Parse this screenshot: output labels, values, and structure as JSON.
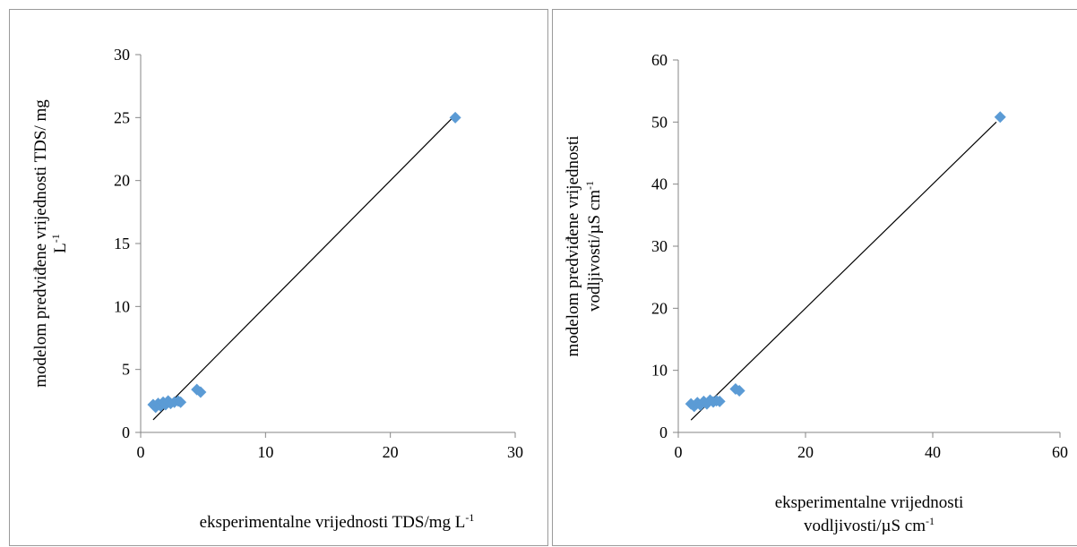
{
  "colors": {
    "marker": "#5b9bd5",
    "axis": "#868686",
    "trendline": "#000000",
    "border": "#9a9a9a"
  },
  "chart_data": [
    {
      "type": "scatter",
      "title": "",
      "xlabel": "eksperimentalne vrijednosti TDS/mg L-1",
      "xlabel_lines": [
        {
          "text": "eksperimentalne vrijednosti TDS/mg L",
          "sup": "-1"
        }
      ],
      "ylabel": "modelom predviđene vrijednosti TDS/ mg L-1",
      "ylabel_lines": [
        {
          "text": "modelom predviđene vrijednosti TDS/ mg",
          "sup": ""
        },
        {
          "text": "L",
          "sup": "-1"
        }
      ],
      "xlim": [
        0,
        30
      ],
      "ylim": [
        0,
        30
      ],
      "xticks": [
        0,
        10,
        20,
        30
      ],
      "yticks": [
        0,
        5,
        10,
        15,
        20,
        25,
        30
      ],
      "grid": false,
      "legend": "none",
      "series": [
        {
          "marker": "diamond",
          "points": [
            [
              1.0,
              2.2
            ],
            [
              1.2,
              2.0
            ],
            [
              1.4,
              2.3
            ],
            [
              1.6,
              2.1
            ],
            [
              1.8,
              2.4
            ],
            [
              2.0,
              2.2
            ],
            [
              2.2,
              2.5
            ],
            [
              2.4,
              2.3
            ],
            [
              2.7,
              2.4
            ],
            [
              3.0,
              2.5
            ],
            [
              3.2,
              2.4
            ],
            [
              4.5,
              3.4
            ],
            [
              4.8,
              3.2
            ],
            [
              25.2,
              25.0
            ]
          ]
        }
      ],
      "trendline": {
        "x": [
          1.0,
          25.0
        ],
        "y": [
          1.0,
          25.0
        ]
      }
    },
    {
      "type": "scatter",
      "title": "",
      "xlabel": "eksperimentalne vrijednosti vodljivosti/µS cm-1",
      "xlabel_lines": [
        {
          "text": "eksperimentalne vrijednosti",
          "sup": ""
        },
        {
          "text": "vodljivosti/µS cm",
          "sup": "-1"
        }
      ],
      "ylabel": "modelom predviđene vrijednosti vodljivosti/µS cm-1",
      "ylabel_lines": [
        {
          "text": "modelom predviđene vrijednosti",
          "sup": ""
        },
        {
          "text": "vodljivosti/µS cm",
          "sup": "-1"
        }
      ],
      "xlim": [
        0,
        60
      ],
      "ylim": [
        0,
        60
      ],
      "xticks": [
        0,
        20,
        40,
        60
      ],
      "yticks": [
        0,
        10,
        20,
        30,
        40,
        50,
        60
      ],
      "grid": false,
      "legend": "none",
      "series": [
        {
          "marker": "diamond",
          "points": [
            [
              2.0,
              4.6
            ],
            [
              2.5,
              4.2
            ],
            [
              3.0,
              4.8
            ],
            [
              3.5,
              4.4
            ],
            [
              4.0,
              5.0
            ],
            [
              4.5,
              4.6
            ],
            [
              5.0,
              5.2
            ],
            [
              5.5,
              4.9
            ],
            [
              6.0,
              5.1
            ],
            [
              6.5,
              5.0
            ],
            [
              9.0,
              7.0
            ],
            [
              9.6,
              6.7
            ],
            [
              50.6,
              50.8
            ]
          ]
        }
      ],
      "trendline": {
        "x": [
          2.0,
          50.0
        ],
        "y": [
          2.0,
          50.0
        ]
      }
    }
  ]
}
